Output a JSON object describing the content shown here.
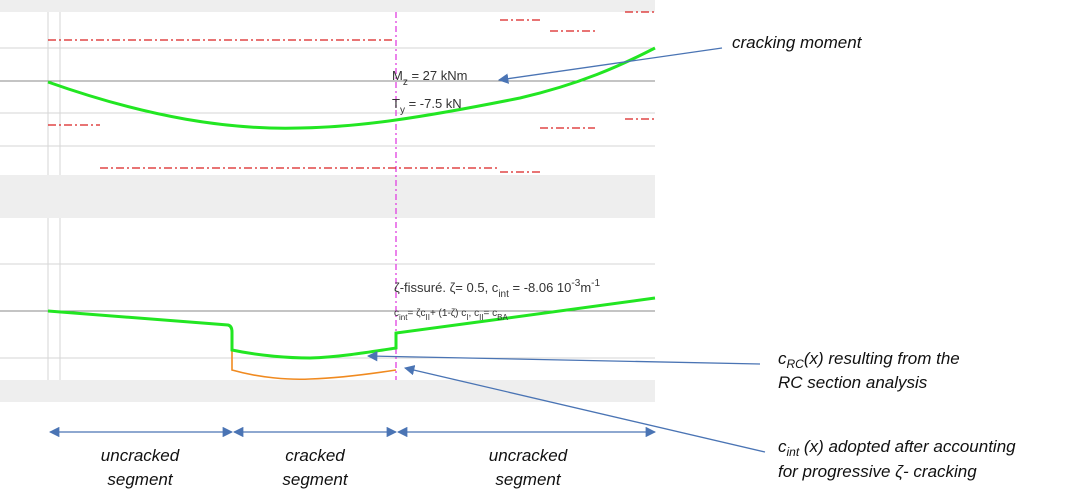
{
  "plot_annotations": {
    "moment": {
      "symbol": "M",
      "subscript": "z",
      "text": " = 27 kNm"
    },
    "shear": {
      "symbol": "T",
      "subscript": "y",
      "text": " = -7.5 kN"
    },
    "zeta": {
      "text": "ζ-fissuré. ζ= 0.5, c",
      "subscript": "int",
      "text2": " = -8.06 10",
      "exponent": "-3",
      "unit": "m",
      "unit_exponent": "-1"
    },
    "formula": {
      "c": "c",
      "sub1": "int",
      "t1": "= ζc",
      "sub2": "II",
      "t2": "+ (1-ζ) c",
      "sub3": "I",
      "t3": ", c",
      "sub4": "II",
      "t4": "= c",
      "sub5": "BA"
    }
  },
  "callouts": {
    "cracking_moment": "cracking moment",
    "c_rc": {
      "symbol": "c",
      "subscript": "RC",
      "line1": "(x)  resulting  from  the",
      "line2": "RC section analysis"
    },
    "c_int": {
      "symbol": "c",
      "subscript": "int",
      "line1": " (x) adopted after accounting",
      "line2": "for progressive  ζ- cracking"
    }
  },
  "segments": [
    {
      "line1": "uncracked",
      "line2": "segment"
    },
    {
      "line1": "cracked",
      "line2": "segment"
    },
    {
      "line1": "uncracked",
      "line2": "segment"
    }
  ]
}
